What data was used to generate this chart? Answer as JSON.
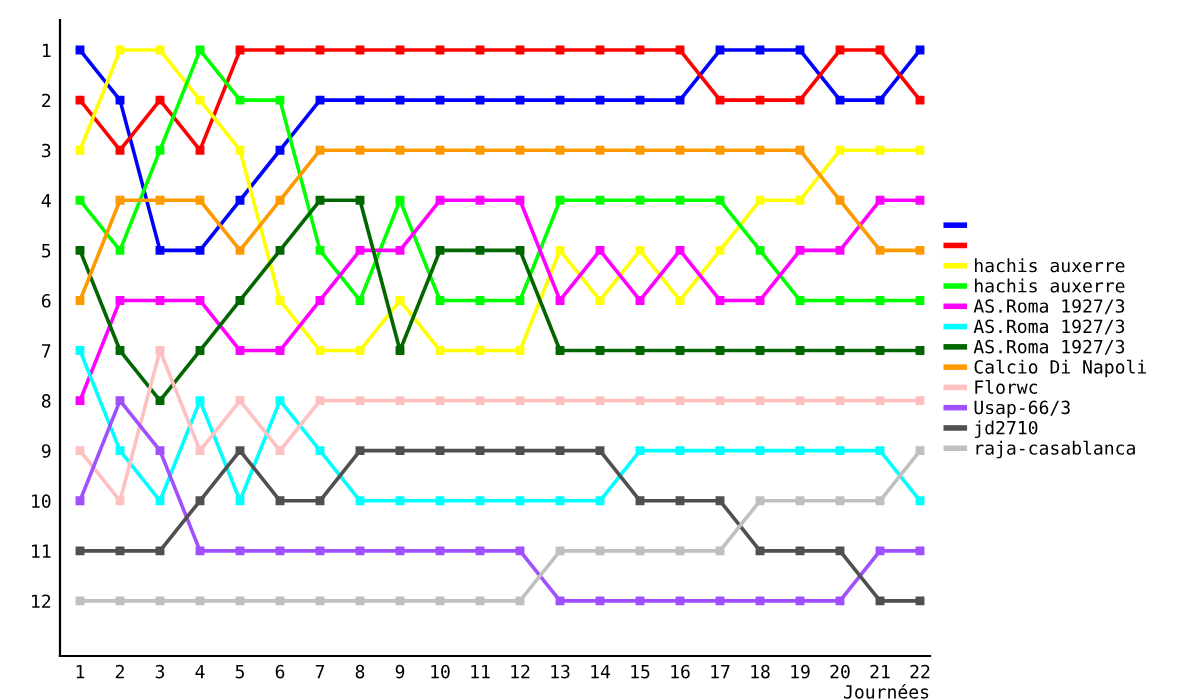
{
  "chart_data": {
    "type": "line",
    "xlabel": "Journées",
    "x": [
      1,
      2,
      3,
      4,
      5,
      6,
      7,
      8,
      9,
      10,
      11,
      12,
      13,
      14,
      15,
      16,
      17,
      18,
      19,
      20,
      21,
      22
    ],
    "xlim": [
      0.5,
      22.25
    ],
    "xticks": [
      1,
      2,
      3,
      4,
      5,
      6,
      7,
      8,
      9,
      10,
      11,
      12,
      13,
      14,
      15,
      16,
      17,
      18,
      19,
      20,
      21,
      22
    ],
    "ylim": [
      13.1,
      0.4
    ],
    "yticks": [
      1,
      2,
      3,
      4,
      5,
      6,
      7,
      8,
      9,
      10,
      11,
      12
    ],
    "marker": "square",
    "line_style": "solid",
    "grid": false,
    "legend": "right",
    "series": [
      {
        "color": "#0000ff",
        "values": [
          1,
          2,
          5,
          5,
          4,
          3,
          2,
          2,
          2,
          2,
          2,
          2,
          2,
          2,
          2,
          2,
          1,
          1,
          1,
          2,
          2,
          1
        ]
      },
      {
        "color": "#ff0000",
        "values": [
          2,
          3,
          2,
          3,
          1,
          1,
          1,
          1,
          1,
          1,
          1,
          1,
          1,
          1,
          1,
          1,
          2,
          2,
          2,
          1,
          1,
          2
        ]
      },
      {
        "name": "hachis auxerre",
        "color": "#ffff00",
        "values": [
          3,
          1,
          1,
          2,
          3,
          6,
          7,
          7,
          6,
          7,
          7,
          7,
          5,
          6,
          5,
          6,
          5,
          4,
          4,
          3,
          3,
          3
        ]
      },
      {
        "name": "hachis auxerre",
        "color": "#00ff00",
        "values": [
          4,
          5,
          3,
          1,
          2,
          2,
          5,
          6,
          4,
          6,
          6,
          6,
          4,
          4,
          4,
          4,
          4,
          5,
          6,
          6,
          6,
          6
        ]
      },
      {
        "name": "AS.Roma 1927/3",
        "color": "#ff00ff",
        "values": [
          8,
          6,
          6,
          6,
          7,
          7,
          6,
          5,
          5,
          4,
          4,
          4,
          6,
          5,
          6,
          5,
          6,
          6,
          5,
          5,
          4,
          4
        ]
      },
      {
        "name": "AS.Roma 1927/3",
        "color": "#00ffff",
        "values": [
          7,
          9,
          10,
          8,
          10,
          8,
          9,
          10,
          10,
          10,
          10,
          10,
          10,
          10,
          9,
          9,
          9,
          9,
          9,
          9,
          9,
          10
        ]
      },
      {
        "name": "AS.Roma 1927/3",
        "color": "#006600",
        "values": [
          5,
          7,
          8,
          7,
          6,
          5,
          4,
          4,
          7,
          5,
          5,
          5,
          7,
          7,
          7,
          7,
          7,
          7,
          7,
          7,
          7,
          7
        ]
      },
      {
        "name": "Calcio Di Napoli",
        "color": "#ff9900",
        "values": [
          6,
          4,
          4,
          4,
          5,
          4,
          3,
          3,
          3,
          3,
          3,
          3,
          3,
          3,
          3,
          3,
          3,
          3,
          3,
          4,
          5,
          5
        ]
      },
      {
        "name": "Florwc",
        "color": "#ffc0c0",
        "values": [
          9,
          10,
          7,
          9,
          8,
          9,
          8,
          8,
          8,
          8,
          8,
          8,
          8,
          8,
          8,
          8,
          8,
          8,
          8,
          8,
          8,
          8
        ]
      },
      {
        "name": "Usap-66/3",
        "color": "#a050ff",
        "values": [
          10,
          8,
          9,
          11,
          11,
          11,
          11,
          11,
          11,
          11,
          11,
          11,
          12,
          12,
          12,
          12,
          12,
          12,
          12,
          12,
          11,
          11
        ]
      },
      {
        "name": "jd2710",
        "color": "#505050",
        "values": [
          11,
          11,
          11,
          10,
          9,
          10,
          10,
          9,
          9,
          9,
          9,
          9,
          9,
          9,
          10,
          10,
          10,
          11,
          11,
          11,
          12,
          12
        ]
      },
      {
        "name": "raja-casablanca",
        "color": "#c0c0c0",
        "values": [
          12,
          12,
          12,
          12,
          12,
          12,
          12,
          12,
          12,
          12,
          12,
          12,
          11,
          11,
          11,
          11,
          11,
          10,
          10,
          10,
          10,
          9
        ]
      }
    ]
  }
}
